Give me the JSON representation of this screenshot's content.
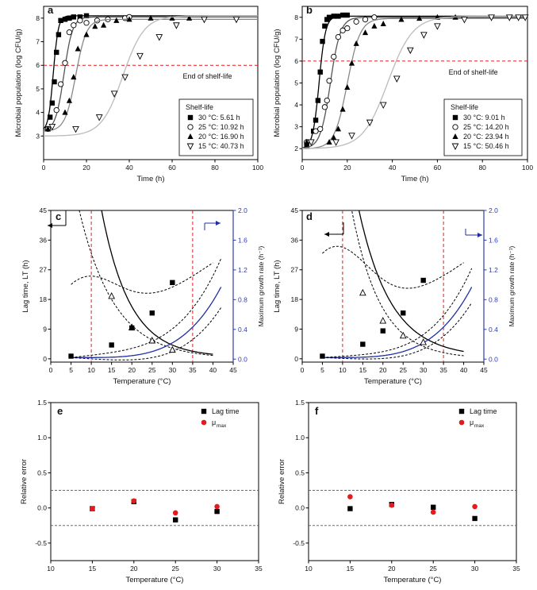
{
  "chart_data": [
    {
      "panel": "a",
      "type": "scatter",
      "xlabel": "Time (h)",
      "ylabel": "Microbial population (log CFU/g)",
      "xlim": [
        0,
        100
      ],
      "ylim": [
        2,
        8.5
      ],
      "xticks": [
        0,
        20,
        40,
        60,
        80,
        100
      ],
      "yticks": [
        3,
        4,
        5,
        6,
        7,
        8
      ],
      "ref_line": {
        "y": 6,
        "label": "End of shelf-life"
      },
      "legend": {
        "title": "Shelf-life",
        "position": "lower-right"
      },
      "series": [
        {
          "name": "30 °C: 5.61 h",
          "marker": "square-filled",
          "curve": [
            3.2,
            8.1,
            0.85,
            4.5
          ],
          "x": [
            2,
            3,
            4,
            5,
            6,
            7,
            8,
            10,
            12,
            14,
            17,
            20
          ],
          "y": [
            3.3,
            3.8,
            4.4,
            5.3,
            6.55,
            7.3,
            7.9,
            7.95,
            8.0,
            8.05,
            8.05,
            8.1
          ]
        },
        {
          "name": "25 °C: 10.92 h",
          "marker": "circle-open",
          "curve": [
            3.2,
            8.05,
            0.5,
            9.5
          ],
          "x": [
            2,
            6,
            8,
            10,
            12,
            14,
            17,
            20,
            25,
            30,
            38,
            40
          ],
          "y": [
            3.3,
            4.1,
            5.2,
            6.1,
            7.4,
            7.7,
            7.9,
            7.8,
            7.9,
            7.95,
            8.0,
            8.05
          ]
        },
        {
          "name": "20 °C: 16.90 h",
          "marker": "triangle-filled",
          "curve": [
            3.2,
            7.95,
            0.4,
            15
          ],
          "x": [
            2,
            10,
            12,
            14,
            16,
            20,
            24,
            28,
            34,
            40,
            50,
            60,
            68
          ],
          "y": [
            3.3,
            4.0,
            4.5,
            5.5,
            6.7,
            7.3,
            7.65,
            7.7,
            7.9,
            7.95,
            8.0,
            8.0,
            8.0
          ]
        },
        {
          "name": "15 °C: 40.73 h",
          "marker": "triangle-down-open",
          "curve": [
            3.0,
            8.1,
            0.2,
            37
          ],
          "x": [
            4,
            15,
            26,
            33,
            38,
            45,
            54,
            62,
            75,
            90
          ],
          "y": [
            3.4,
            3.3,
            3.8,
            4.8,
            5.5,
            6.4,
            7.2,
            7.7,
            7.95,
            7.95
          ]
        }
      ]
    },
    {
      "panel": "b",
      "type": "scatter",
      "xlabel": "Time (h)",
      "ylabel": "Microbial population (log CFU/g)",
      "xlim": [
        0,
        100
      ],
      "ylim": [
        1.5,
        8.5
      ],
      "xticks": [
        0,
        20,
        40,
        60,
        80,
        100
      ],
      "yticks": [
        2,
        3,
        4,
        5,
        6,
        7,
        8
      ],
      "ref_line": {
        "y": 6,
        "label": "End of shelf-life"
      },
      "legend": {
        "title": "Shelf-life",
        "position": "lower-right"
      },
      "series": [
        {
          "name": "30 °C: 9.01 h",
          "marker": "square-filled",
          "curve": [
            2.0,
            8.05,
            0.7,
            7.5
          ],
          "x": [
            2,
            5,
            6,
            7,
            8,
            9,
            10,
            11,
            12,
            14,
            16,
            18,
            20
          ],
          "y": [
            2.1,
            2.8,
            3.3,
            4.2,
            5.5,
            6.9,
            7.6,
            7.9,
            8.0,
            8.05,
            8.05,
            8.1,
            8.1
          ]
        },
        {
          "name": "25 °C: 14.20 h",
          "marker": "circle-open",
          "curve": [
            2.0,
            8.0,
            0.45,
            12.5
          ],
          "x": [
            2,
            6,
            8,
            10,
            11,
            12,
            14,
            16,
            18,
            20,
            24,
            28,
            32
          ],
          "y": [
            2.3,
            2.8,
            2.9,
            3.9,
            4.2,
            5.1,
            6.2,
            7.1,
            7.4,
            7.5,
            7.8,
            7.9,
            8.0
          ]
        },
        {
          "name": "20 °C: 23.94 h",
          "marker": "triangle-filled",
          "curve": [
            2.0,
            7.95,
            0.35,
            20
          ],
          "x": [
            2,
            12,
            14,
            16,
            18,
            20,
            22,
            24,
            28,
            32,
            36,
            44,
            52,
            60,
            68
          ],
          "y": [
            2.3,
            2.3,
            2.5,
            2.9,
            3.8,
            4.8,
            5.9,
            6.8,
            7.3,
            7.6,
            7.7,
            7.9,
            7.95,
            8.0,
            8.0
          ]
        },
        {
          "name": "15 °C: 50.46 h",
          "marker": "triangle-down-open",
          "curve": [
            2.0,
            8.05,
            0.18,
            38
          ],
          "x": [
            4,
            15,
            22,
            30,
            36,
            42,
            48,
            54,
            60,
            72,
            84,
            92,
            96,
            99
          ],
          "y": [
            2.3,
            2.3,
            2.6,
            3.2,
            4.0,
            5.2,
            6.5,
            7.2,
            7.6,
            7.9,
            8.0,
            8.0,
            8.0,
            8.0
          ]
        }
      ]
    },
    {
      "panel": "c",
      "type": "line",
      "xlabel": "Temperature (°C)",
      "ylabel": "Lag time, LT (h)",
      "y2label": "Maximum growth rate (h⁻¹)",
      "xlim": [
        0,
        45
      ],
      "ylim": [
        -1,
        45
      ],
      "y2lim": [
        -0.04,
        2.0
      ],
      "xticks": [
        0,
        5,
        10,
        15,
        20,
        25,
        30,
        35,
        40,
        45
      ],
      "yticks": [
        0,
        9,
        18,
        27,
        36,
        45
      ],
      "y2ticks": [
        "0.0",
        "0.4",
        "0.8",
        "1.2",
        "1.6",
        "2.0"
      ],
      "vlines": [
        10,
        35
      ],
      "lag_time": {
        "x": [
          15,
          20,
          25,
          30
        ],
        "y": [
          19,
          9.5,
          5.5,
          2.7
        ],
        "fit": [
          64,
          0.143
        ],
        "ci_lower": [
          32,
          0.115
        ],
        "ci_upper_peak": 23.5
      },
      "mu_max": {
        "x": [
          5,
          15,
          20,
          25,
          30
        ],
        "y": [
          0.04,
          0.19,
          0.42,
          0.62,
          1.03
        ],
        "fit": [
          0.0208,
          0.76,
          4
        ],
        "ci_upper": [
          0.0208,
          0.88,
          4,
          0.22
        ],
        "ci_lower": [
          0.0208,
          0.64,
          4,
          -0.12
        ]
      }
    },
    {
      "panel": "d",
      "type": "line",
      "xlabel": "Temperature (°C)",
      "ylabel": "Lag time, LT (h)",
      "y2label": "Maximum growth rate (h⁻¹)",
      "xlim": [
        0,
        45
      ],
      "ylim": [
        -1,
        45
      ],
      "y2lim": [
        -0.04,
        2.0
      ],
      "xticks": [
        0,
        5,
        10,
        15,
        20,
        25,
        30,
        35,
        40,
        45
      ],
      "yticks": [
        0,
        9,
        18,
        27,
        36,
        45
      ],
      "y2ticks": [
        "0.0",
        "0.4",
        "0.8",
        "1.2",
        "1.6",
        "2.0"
      ],
      "vlines": [
        10,
        35
      ],
      "lag_time": {
        "x": [
          15,
          20,
          25,
          30
        ],
        "y": [
          20,
          11.5,
          7,
          5
        ],
        "fit": [
          74,
          0.125
        ],
        "ci_lower": [
          62,
          0.14
        ],
        "ci_upper_peak": 33
      },
      "mu_max": {
        "x": [
          5,
          15,
          20,
          25,
          30
        ],
        "y": [
          0.04,
          0.2,
          0.38,
          0.62,
          1.06
        ],
        "fit": [
          0.0208,
          0.76,
          4
        ],
        "ci_upper": [
          0.0208,
          0.86,
          4,
          0.12
        ],
        "ci_lower": [
          0.0208,
          0.66,
          4,
          -0.08
        ]
      }
    },
    {
      "panel": "e",
      "type": "scatter",
      "xlabel": "Temperature (°C)",
      "ylabel": "Relative error",
      "xlim": [
        10,
        35
      ],
      "ylim": [
        -0.75,
        1.5
      ],
      "xticks": [
        10,
        15,
        20,
        25,
        30,
        35
      ],
      "yticks": [
        "-0.5",
        "0.0",
        "0.5",
        "1.0",
        "1.5"
      ],
      "hlines": [
        0.25,
        -0.25
      ],
      "series": [
        {
          "name": "Lag time",
          "marker": "square-black",
          "x": [
            15,
            20,
            25,
            30
          ],
          "y": [
            -0.01,
            0.09,
            -0.17,
            -0.05
          ]
        },
        {
          "name": "μmax",
          "marker": "circle-red",
          "x": [
            15,
            20,
            25,
            30
          ],
          "y": [
            -0.01,
            0.1,
            -0.07,
            0.02
          ]
        }
      ]
    },
    {
      "panel": "f",
      "type": "scatter",
      "xlabel": "Temperature (°C)",
      "ylabel": "Relative error",
      "xlim": [
        10,
        35
      ],
      "ylim": [
        -0.75,
        1.5
      ],
      "xticks": [
        10,
        15,
        20,
        25,
        30,
        35
      ],
      "yticks": [
        "-0.5",
        "0.0",
        "0.5",
        "1.0",
        "1.5"
      ],
      "hlines": [
        0.25,
        -0.25
      ],
      "series": [
        {
          "name": "Lag time",
          "marker": "square-black",
          "x": [
            15,
            20,
            25,
            30
          ],
          "y": [
            -0.01,
            0.05,
            0.01,
            -0.15
          ]
        },
        {
          "name": "μmax",
          "marker": "circle-red",
          "x": [
            15,
            20,
            25,
            30
          ],
          "y": [
            0.16,
            0.04,
            -0.06,
            0.02
          ]
        }
      ]
    }
  ]
}
